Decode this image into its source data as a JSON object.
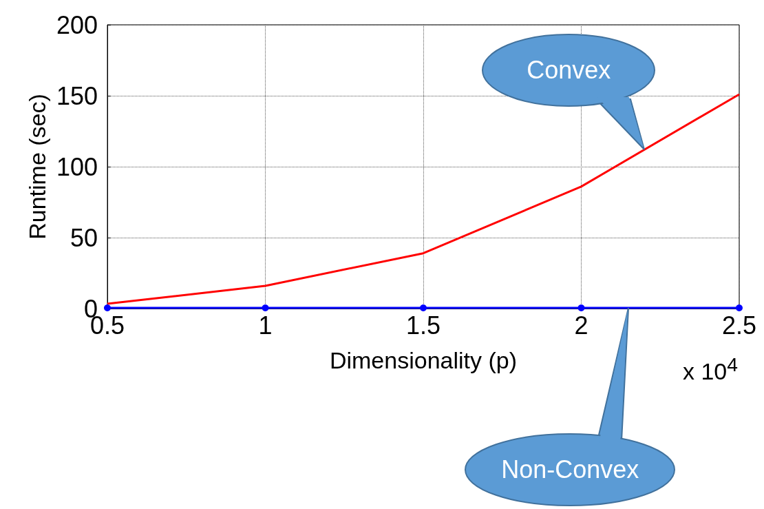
{
  "chart_data": {
    "type": "line",
    "xlabel": "Dimensionality (p)",
    "ylabel": "Runtime (sec)",
    "x": [
      0.5,
      1,
      1.5,
      2,
      2.5
    ],
    "series": [
      {
        "color": "#ff0000",
        "values": [
          3.4,
          16,
          39,
          86,
          151
        ],
        "marker": "none"
      },
      {
        "color": "#0000ff",
        "values": [
          0.5,
          0.5,
          0.5,
          0.5,
          0.5
        ],
        "marker": "circle"
      }
    ],
    "xlim": [
      0.5,
      2.5
    ],
    "xticks": [
      0.5,
      1,
      1.5,
      2,
      2.5
    ],
    "ylim": [
      0,
      200
    ],
    "yticks": [
      0,
      50,
      100,
      150,
      200
    ],
    "grid": true,
    "line_style": "solid",
    "annotations": [
      {
        "text": "Convex",
        "x": 2.2,
        "y": 112
      },
      {
        "text": "Non-Convex",
        "x": 2.15,
        "y": 0.5
      },
      "x 10$^{4}$"
    ]
  }
}
